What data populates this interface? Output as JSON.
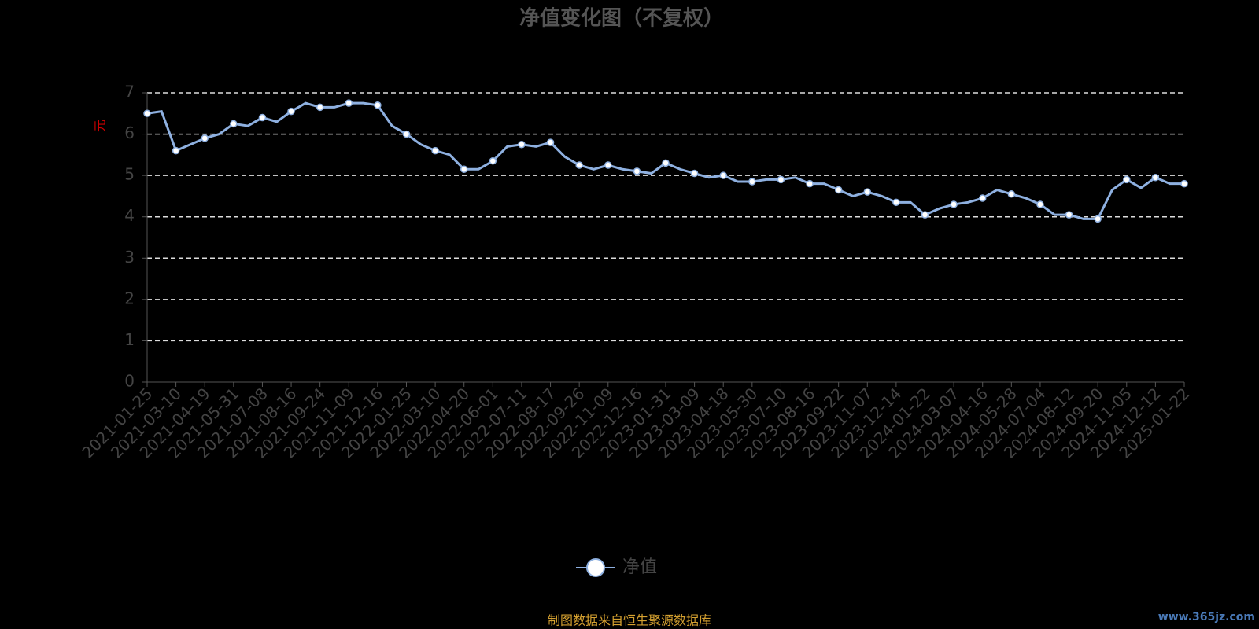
{
  "chart_data": {
    "type": "line",
    "title": "净值变化图（不复权）",
    "y_label": "元",
    "footer": "制图数据来自恒生聚源数据库",
    "watermark": "www.365jz.com",
    "categories": [
      "2021-01-25",
      null,
      "2021-03-10",
      null,
      "2021-04-19",
      null,
      "2021-05-31",
      null,
      "2021-07-08",
      null,
      "2021-08-16",
      null,
      "2021-09-24",
      null,
      "2021-11-09",
      null,
      "2021-12-16",
      null,
      "2022-01-25",
      null,
      "2022-03-10",
      null,
      "2022-04-20",
      null,
      "2022-06-01",
      null,
      "2022-07-11",
      null,
      "2022-08-17",
      null,
      "2022-09-26",
      null,
      "2022-11-09",
      null,
      "2022-12-16",
      null,
      "2023-01-31",
      null,
      "2023-03-09",
      null,
      "2023-04-18",
      null,
      "2023-05-30",
      null,
      "2023-07-10",
      null,
      "2023-08-16",
      null,
      "2023-09-22",
      null,
      "2023-11-07",
      null,
      "2023-12-14",
      null,
      "2024-01-22",
      null,
      "2024-03-07",
      null,
      "2024-04-16",
      null,
      "2024-05-28",
      null,
      "2024-07-04",
      null,
      "2024-08-12",
      null,
      "2024-09-20",
      null,
      "2024-11-05",
      null,
      "2024-12-12",
      null,
      "2025-01-22"
    ],
    "series": [
      {
        "name": "净值",
        "color": "#8eb0e0",
        "values": [
          6.5,
          6.55,
          5.6,
          5.75,
          5.9,
          6.0,
          6.25,
          6.2,
          6.4,
          6.3,
          6.55,
          6.75,
          6.65,
          6.65,
          6.75,
          6.75,
          6.7,
          6.2,
          6.0,
          5.75,
          5.6,
          5.5,
          5.15,
          5.15,
          5.35,
          5.7,
          5.75,
          5.7,
          5.8,
          5.45,
          5.25,
          5.15,
          5.25,
          5.15,
          5.1,
          5.05,
          5.3,
          5.15,
          5.05,
          4.95,
          5.0,
          4.85,
          4.85,
          4.9,
          4.9,
          4.95,
          4.8,
          4.8,
          4.65,
          4.5,
          4.6,
          4.5,
          4.35,
          4.35,
          4.05,
          4.2,
          4.3,
          4.35,
          4.45,
          4.65,
          4.55,
          4.45,
          4.3,
          4.05,
          4.05,
          3.95,
          3.95,
          4.65,
          4.9,
          4.7,
          4.95,
          4.8,
          4.8
        ]
      }
    ],
    "ylim": [
      0,
      7
    ],
    "yticks": [
      0,
      1,
      2,
      3,
      4,
      5,
      6,
      7
    ],
    "grid": true,
    "legend": "bottom"
  }
}
